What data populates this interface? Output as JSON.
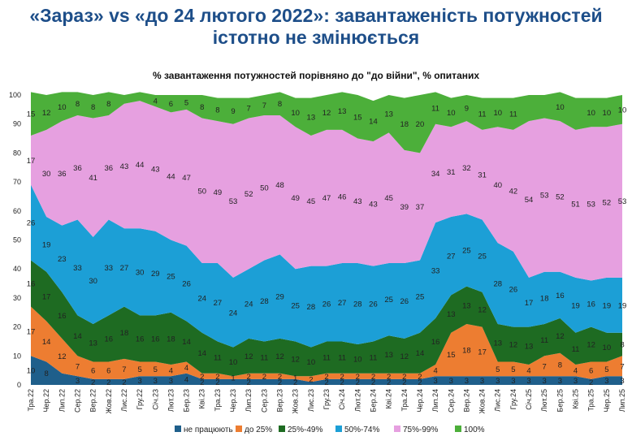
{
  "chart_data": {
    "type": "area",
    "stacked": true,
    "title": "«Зараз» vs «до 24 лютого 2022»: завантаженість потужностей істотно не змінюється",
    "subtitle": "% завантаження потужностей порівняно до \"до війни\", % опитаних",
    "ylim": [
      0,
      100
    ],
    "yticks": [
      "0",
      "10",
      "20",
      "30",
      "40",
      "50",
      "60",
      "70",
      "80",
      "90",
      "100"
    ],
    "categories": [
      "Тра.22",
      "Чер.22",
      "Лип.22",
      "Сер.22",
      "Вер.22",
      "Жов.22",
      "Лис.22",
      "Гру.22",
      "Січ.23",
      "Лют.23",
      "Бер.23",
      "Кві.23",
      "Тра.23",
      "Чер.23",
      "Лип.23",
      "Сер.23",
      "Вер.23",
      "Жов.23",
      "Лис.23",
      "Гру.23",
      "Січ.24",
      "Лют.24",
      "Бер.24",
      "Кві.24",
      "Тра.24",
      "Чер.24",
      "Лип.24",
      "Сер.24",
      "Вер.24",
      "Жов.24",
      "Лис.24",
      "Гру.24",
      "Січ.25",
      "Лют.25",
      "Бер.25",
      "Кві.25",
      "Тра.25",
      "Чер.25",
      "Лип.25"
    ],
    "tick_labels": [
      "Тра.22",
      "Чер.22",
      "Лип.22",
      "Сер.22",
      "Вер.22",
      "Жов.22",
      "Лис.22",
      "Гру.22",
      "Січ.23",
      "Лют.23",
      "Бер.23",
      "Кві.23",
      "Тра.23",
      "Чер.23",
      "Лип.23",
      "Сер.23",
      "Вер.23",
      "Жов.23",
      "Лис.23",
      "Гру.23",
      "Січ.24",
      "Лют.24",
      "Бер.24",
      "Кві.24",
      "Тра.24",
      "Чер.24",
      "Лип.24",
      "Сер.24",
      "Вер.24",
      "Жов.24",
      "Лис.24",
      "Гру.24",
      "Січ.25",
      "Лют.25",
      "Бер.25",
      "Кві.25",
      "Тра.25",
      "Чер.25",
      "Лип.25"
    ],
    "series": [
      {
        "name": "не працюють",
        "color": "#1f5f8b",
        "values": [
          10,
          8,
          4,
          3,
          2,
          2,
          2,
          3,
          3,
          3,
          4,
          2,
          2,
          2,
          2,
          2,
          2,
          2,
          1,
          2,
          2,
          2,
          2,
          2,
          2,
          2,
          3,
          3,
          3,
          3,
          3,
          3,
          3,
          3,
          3,
          3,
          2,
          3,
          3
        ],
        "labels": [
          "10",
          "8",
          "",
          "3",
          "2",
          "2",
          "2",
          "3",
          "3",
          "3",
          "4",
          "2",
          "2",
          "",
          "2",
          "",
          "2",
          "2",
          "",
          "2",
          "2",
          "2",
          "2",
          "2",
          "2",
          "2",
          "3",
          "3",
          "3",
          "3",
          "3",
          "3",
          "3",
          "3",
          "3",
          "3",
          "2",
          "3",
          "3"
        ]
      },
      {
        "name": "до 25%",
        "color": "#ed7d31",
        "values": [
          17,
          14,
          12,
          7,
          6,
          6,
          7,
          5,
          5,
          4,
          4,
          2,
          2,
          1,
          2,
          2,
          2,
          1,
          2,
          2,
          2,
          2,
          2,
          2,
          2,
          2,
          4,
          15,
          18,
          17,
          5,
          5,
          4,
          7,
          8,
          4,
          6,
          5,
          7
        ],
        "labels": [
          "17",
          "14",
          "12",
          "7",
          "6",
          "6",
          "7",
          "5",
          "5",
          "4",
          "4",
          "2",
          "2",
          "1",
          "2",
          "2",
          "2",
          "1",
          "2",
          "2",
          "2",
          "2",
          "2",
          "2",
          "2",
          "2",
          "4",
          "15",
          "18",
          "17",
          "5",
          "5",
          "4",
          "7",
          "8",
          "4",
          "6",
          "5",
          "7"
        ]
      },
      {
        "name": "25%-49%",
        "color": "#1e6b22",
        "values": [
          16,
          17,
          16,
          14,
          13,
          16,
          18,
          16,
          16,
          18,
          14,
          14,
          11,
          10,
          12,
          11,
          12,
          12,
          10,
          11,
          11,
          10,
          11,
          13,
          12,
          14,
          16,
          13,
          13,
          12,
          13,
          12,
          13,
          11,
          12,
          11,
          12,
          10,
          8
        ],
        "labels": [
          "16",
          "17",
          "16",
          "14",
          "13",
          "16",
          "18",
          "16",
          "16",
          "18",
          "14",
          "14",
          "11",
          "10",
          "12",
          "11",
          "12",
          "12",
          "10",
          "11",
          "11",
          "10",
          "11",
          "13",
          "12",
          "14",
          "16",
          "13",
          "13",
          "12",
          "13",
          "12",
          "13",
          "11",
          "12",
          "11",
          "12",
          "10",
          "8"
        ]
      },
      {
        "name": "50%-74%",
        "color": "#1c9fd6",
        "values": [
          26,
          19,
          23,
          33,
          30,
          33,
          27,
          30,
          29,
          25,
          26,
          24,
          27,
          24,
          24,
          28,
          29,
          25,
          28,
          26,
          27,
          28,
          26,
          25,
          26,
          25,
          33,
          27,
          25,
          25,
          28,
          26,
          17,
          18,
          16,
          19,
          16,
          19,
          19
        ],
        "labels": [
          "26",
          "19",
          "23",
          "33",
          "30",
          "33",
          "27",
          "30",
          "29",
          "25",
          "26",
          "24",
          "27",
          "24",
          "24",
          "28",
          "29",
          "25",
          "28",
          "26",
          "27",
          "28",
          "26",
          "25",
          "26",
          "25",
          "33",
          "27",
          "25",
          "25",
          "28",
          "26",
          "17",
          "18",
          "16",
          "19",
          "16",
          "19",
          "19"
        ]
      },
      {
        "name": "75%-99%",
        "color": "#e6a0e0",
        "values": [
          17,
          30,
          36,
          36,
          41,
          36,
          43,
          44,
          43,
          44,
          47,
          50,
          49,
          53,
          52,
          50,
          48,
          49,
          45,
          47,
          46,
          43,
          43,
          45,
          39,
          37,
          34,
          31,
          32,
          31,
          40,
          42,
          54,
          53,
          52,
          51,
          53,
          52,
          53
        ],
        "labels": [
          "17",
          "30",
          "36",
          "36",
          "41",
          "36",
          "43",
          "44",
          "43",
          "44",
          "47",
          "50",
          "49",
          "53",
          "52",
          "50",
          "48",
          "49",
          "45",
          "47",
          "46",
          "43",
          "43",
          "45",
          "39",
          "37",
          "34",
          "31",
          "32",
          "31",
          "40",
          "42",
          "54",
          "53",
          "52",
          "51",
          "53",
          "52",
          "53"
        ]
      },
      {
        "name": "100%",
        "color": "#4caf3a",
        "values": [
          15,
          12,
          10,
          8,
          8,
          8,
          3,
          3,
          4,
          6,
          5,
          8,
          8,
          9,
          7,
          7,
          8,
          10,
          13,
          12,
          13,
          15,
          14,
          13,
          18,
          20,
          11,
          10,
          9,
          11,
          10,
          11,
          9,
          8,
          10,
          11,
          10,
          10,
          10
        ],
        "labels": [
          "15",
          "12",
          "10",
          "8",
          "8",
          "8",
          "",
          "",
          "4",
          "6",
          "5",
          "8",
          "8",
          "9",
          "7",
          "7",
          "8",
          "10",
          "13",
          "12",
          "13",
          "15",
          "14",
          "13",
          "18",
          "20",
          "11",
          "10",
          "9",
          "11",
          "10",
          "11",
          "",
          "",
          "10",
          "",
          "10",
          "10",
          "10"
        ]
      }
    ],
    "legend_position": "bottom"
  }
}
